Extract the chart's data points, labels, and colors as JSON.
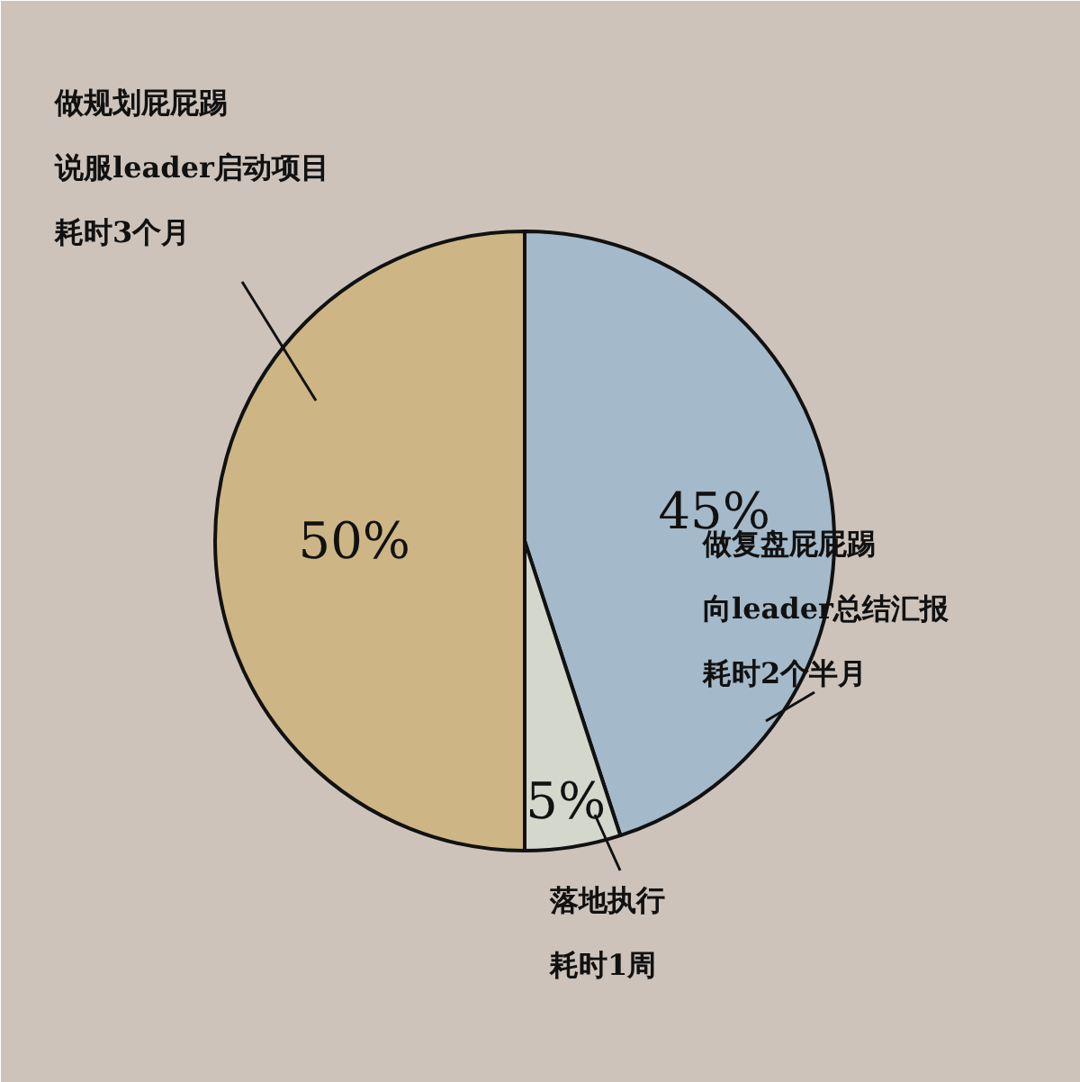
{
  "chart_data": {
    "type": "pie",
    "categories": [
      "做复盘屁屁踢向leader总结汇报耗时2个半月",
      "落地执行耗时1周",
      "做规划屁屁踢说服leader启动项目耗时3个月"
    ],
    "values": [
      45,
      5,
      50
    ],
    "colors": [
      "#a4b9c9",
      "#d4d7cb",
      "#cdb585"
    ],
    "value_labels": [
      "45%",
      "5%",
      "50%"
    ]
  }
}
